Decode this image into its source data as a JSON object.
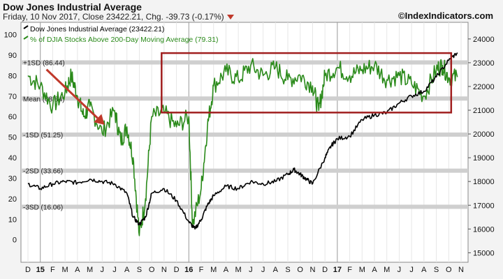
{
  "header": {
    "title": "Dow Jones Industrial Average",
    "subtitle": "Friday, 10 Nov 2017, Close 23422.21, Chg. -39.73 (-0.17%)",
    "brand": "©IndexIndicators.com"
  },
  "legend": {
    "black": "Dow Jones Industrial Average (23422.21)",
    "green": "% of DJIA Stocks Above 200-Day Moving Average (79.31)"
  },
  "chart_data": {
    "type": "line",
    "title": "Dow Jones Industrial Average",
    "x_tick_labels": [
      "D",
      "15",
      "F",
      "M",
      "A",
      "M",
      "J",
      "J",
      "A",
      "S",
      "O",
      "N",
      "D",
      "16",
      "F",
      "M",
      "A",
      "M",
      "J",
      "J",
      "A",
      "S",
      "O",
      "N",
      "D",
      "17",
      "F",
      "M",
      "A",
      "M",
      "J",
      "J",
      "A",
      "S",
      "O",
      "N"
    ],
    "y_left": {
      "ticks": [
        0,
        10,
        20,
        30,
        40,
        50,
        60,
        70,
        80,
        90,
        100
      ],
      "range": [
        -11,
        106
      ]
    },
    "y_right": {
      "ticks": [
        15000,
        16000,
        17000,
        18000,
        19000,
        20000,
        21000,
        22000,
        23000,
        24000
      ],
      "range": [
        14600,
        24700
      ]
    },
    "bands": [
      {
        "label": "+1SD (86.44)",
        "value": 86.44
      },
      {
        "label": "Mean (68.84)",
        "value": 68.84
      },
      {
        "label": "-1SD (51.25)",
        "value": 51.25
      },
      {
        "label": "-2SD (33.66)",
        "value": 33.66
      },
      {
        "label": "-3SD (16.06)",
        "value": 16.06
      }
    ],
    "series": [
      {
        "name": "Dow Jones Industrial Average (23422.21)",
        "color": "#000000",
        "axis": "right",
        "x": [
          0,
          1,
          2,
          3,
          4,
          5,
          6,
          7,
          8,
          8.5,
          9,
          9.5,
          10,
          11,
          12,
          13,
          13.5,
          14,
          14.5,
          15,
          16,
          17,
          18,
          19,
          20,
          21,
          21.5,
          22,
          22.5,
          23,
          24,
          24.5,
          25,
          26,
          27,
          28,
          29,
          30,
          31,
          32,
          33,
          34,
          34.7
        ],
        "y": [
          17900,
          17700,
          17900,
          18000,
          17950,
          18100,
          18000,
          17900,
          17500,
          16500,
          16200,
          16500,
          17500,
          17700,
          17200,
          16300,
          16000,
          16400,
          17000,
          17400,
          17800,
          17700,
          18000,
          17900,
          18000,
          18300,
          18500,
          18300,
          18100,
          17900,
          19000,
          19500,
          19800,
          19900,
          20600,
          20800,
          20900,
          21300,
          21600,
          21800,
          22400,
          23100,
          23422
        ]
      },
      {
        "name": "% of DJIA Stocks Above 200-Day Moving Average (79.31)",
        "color": "#2a8a1a",
        "axis": "left",
        "x": [
          0,
          1,
          2,
          3,
          3.5,
          4,
          4.5,
          5,
          6,
          7,
          7.5,
          8,
          8.5,
          9,
          9.5,
          10,
          11,
          12,
          13,
          13.3,
          14,
          14.5,
          15,
          16,
          17,
          18,
          19,
          20,
          21,
          22,
          23,
          23.5,
          24,
          25,
          26,
          27,
          28,
          29,
          30,
          31,
          32,
          33,
          33.5,
          34,
          34.7
        ],
        "y": [
          80,
          75,
          65,
          72,
          80,
          70,
          60,
          65,
          52,
          63,
          48,
          55,
          40,
          2,
          20,
          60,
          62,
          55,
          60,
          7,
          25,
          55,
          75,
          82,
          78,
          85,
          80,
          84,
          78,
          80,
          75,
          63,
          80,
          84,
          80,
          83,
          85,
          78,
          80,
          76,
          70,
          83,
          85,
          79,
          79.31
        ]
      }
    ],
    "annotations": [
      {
        "type": "arrow",
        "color": "#c0392b",
        "from_x": 1.5,
        "from_y": 83,
        "to_x": 6.2,
        "to_y": 56
      },
      {
        "type": "rectangle",
        "color": "#a01e1e",
        "x0": 10.8,
        "x1": 34.2,
        "y0": 62,
        "y1": 91
      }
    ]
  }
}
